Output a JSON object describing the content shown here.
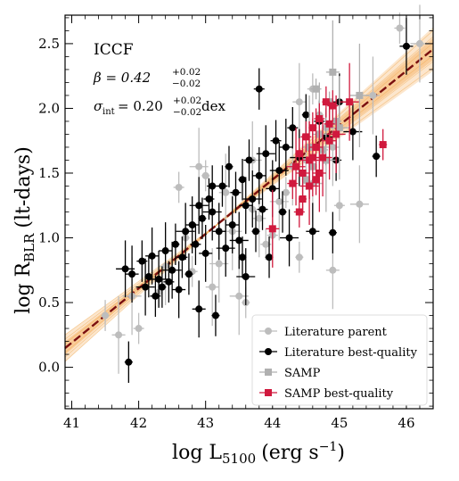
{
  "chart_data": {
    "type": "scatter",
    "xlabel": "log L",
    "xlabel_sub": "5100",
    "xlabel_unit": "(erg s",
    "xlabel_unit_sup": "−1",
    "xlabel_unit_close": ")",
    "ylabel": "log R",
    "ylabel_sub": "BLR",
    "ylabel_unit": "(lt-days)",
    "xlim": [
      40.9,
      46.4
    ],
    "ylim": [
      -0.32,
      2.72
    ],
    "xticks": [
      41,
      42,
      43,
      44,
      45,
      46
    ],
    "yticks": [
      0.0,
      0.5,
      1.0,
      1.5,
      2.0,
      2.5
    ],
    "ytick_labels": [
      "0.0",
      "0.5",
      "1.0",
      "1.5",
      "2.0",
      "2.5"
    ],
    "grid": false,
    "legend_position": "bottom-right",
    "annotations": {
      "method": "ICCF",
      "beta_text": "β = 0.42",
      "beta_err_up": "+0.02",
      "beta_err_down": "−0.02",
      "sigma_text": "σ",
      "sigma_sub": "int",
      "sigma_value": " = 0.20",
      "sigma_err_up": "+0.02",
      "sigma_err_down": "−0.02",
      "sigma_unit": "dex"
    },
    "fit": {
      "slope": 0.42,
      "intercept_at_44": 1.45,
      "line_color": "#7a0f0f",
      "band_color": "#f5b770"
    },
    "series": [
      {
        "name": "Literature parent",
        "color": "#bdbdbd",
        "marker": "circle",
        "points": [
          [
            42.6,
            1.39
          ],
          [
            42.9,
            1.55
          ],
          [
            43.0,
            1.48
          ],
          [
            42.4,
            0.78
          ],
          [
            42.8,
            0.74
          ],
          [
            43.5,
            0.55
          ],
          [
            43.6,
            0.5
          ],
          [
            43.1,
            0.62
          ],
          [
            43.3,
            0.92
          ],
          [
            43.4,
            1.05
          ],
          [
            43.7,
            1.22
          ],
          [
            43.8,
            1.15
          ],
          [
            44.0,
            1.02
          ],
          [
            44.1,
            1.28
          ],
          [
            44.2,
            1.35
          ],
          [
            44.3,
            1.55
          ],
          [
            44.5,
            1.6
          ],
          [
            44.6,
            1.42
          ],
          [
            44.8,
            1.85
          ],
          [
            44.9,
            1.7
          ],
          [
            45.0,
            1.25
          ],
          [
            45.3,
            1.26
          ],
          [
            44.7,
            1.95
          ],
          [
            45.5,
            2.1
          ],
          [
            45.9,
            2.62
          ],
          [
            46.2,
            2.5
          ],
          [
            44.4,
            0.85
          ],
          [
            44.9,
            0.75
          ],
          [
            43.9,
            0.95
          ],
          [
            43.2,
            0.8
          ],
          [
            41.5,
            0.4
          ],
          [
            41.7,
            0.25
          ],
          [
            42.0,
            0.3
          ],
          [
            41.9,
            0.55
          ],
          [
            42.3,
            0.58
          ],
          [
            44.4,
            2.05
          ],
          [
            44.6,
            2.15
          ],
          [
            43.7,
            1.6
          ],
          [
            42.7,
            1.0
          ],
          [
            43.3,
            1.35
          ]
        ]
      },
      {
        "name": "Literature best-quality",
        "color": "#000000",
        "marker": "circle",
        "points": [
          [
            41.8,
            0.76
          ],
          [
            41.85,
            0.04
          ],
          [
            41.9,
            0.72
          ],
          [
            42.05,
            0.82
          ],
          [
            42.1,
            0.62
          ],
          [
            42.15,
            0.7
          ],
          [
            42.2,
            0.86
          ],
          [
            42.25,
            0.55
          ],
          [
            42.3,
            0.68
          ],
          [
            42.35,
            0.62
          ],
          [
            42.4,
            0.9
          ],
          [
            42.45,
            0.66
          ],
          [
            42.5,
            0.75
          ],
          [
            42.55,
            0.95
          ],
          [
            42.6,
            0.6
          ],
          [
            42.65,
            0.85
          ],
          [
            42.7,
            1.05
          ],
          [
            42.75,
            0.72
          ],
          [
            42.8,
            1.1
          ],
          [
            42.85,
            0.95
          ],
          [
            42.9,
            1.25
          ],
          [
            42.95,
            1.15
          ],
          [
            43.0,
            0.88
          ],
          [
            43.05,
            1.3
          ],
          [
            43.1,
            1.2
          ],
          [
            43.15,
            0.4
          ],
          [
            43.2,
            1.05
          ],
          [
            43.25,
            1.4
          ],
          [
            43.3,
            0.92
          ],
          [
            43.35,
            1.55
          ],
          [
            43.4,
            1.1
          ],
          [
            43.45,
            1.35
          ],
          [
            43.5,
            0.98
          ],
          [
            43.55,
            1.45
          ],
          [
            43.6,
            1.25
          ],
          [
            43.65,
            1.6
          ],
          [
            43.7,
            1.3
          ],
          [
            43.75,
            1.05
          ],
          [
            43.8,
            1.48
          ],
          [
            43.85,
            1.22
          ],
          [
            43.9,
            1.65
          ],
          [
            43.95,
            0.85
          ],
          [
            44.0,
            1.38
          ],
          [
            44.05,
            1.75
          ],
          [
            44.1,
            1.52
          ],
          [
            44.15,
            1.2
          ],
          [
            44.2,
            1.7
          ],
          [
            44.3,
            1.85
          ],
          [
            44.4,
            1.62
          ],
          [
            44.5,
            1.95
          ],
          [
            44.6,
            1.05
          ],
          [
            44.7,
            1.9
          ],
          [
            44.8,
            1.78
          ],
          [
            44.9,
            1.04
          ],
          [
            45.0,
            2.05
          ],
          [
            44.95,
            1.6
          ],
          [
            45.2,
            1.82
          ],
          [
            45.55,
            1.63
          ],
          [
            46.0,
            2.48
          ],
          [
            43.8,
            2.15
          ],
          [
            44.25,
            1.0
          ],
          [
            43.55,
            0.85
          ],
          [
            42.9,
            0.45
          ],
          [
            43.1,
            1.4
          ],
          [
            43.6,
            0.7
          ]
        ]
      },
      {
        "name": "SAMP",
        "color": "#b0b0b0",
        "marker": "square",
        "points": [
          [
            44.6,
            1.55
          ],
          [
            44.7,
            1.8
          ],
          [
            44.75,
            1.68
          ],
          [
            44.8,
            1.6
          ],
          [
            44.85,
            2.05
          ],
          [
            44.9,
            2.28
          ],
          [
            44.95,
            1.9
          ],
          [
            45.0,
            1.85
          ],
          [
            44.5,
            1.45
          ],
          [
            44.55,
            1.7
          ],
          [
            44.65,
            2.15
          ],
          [
            45.3,
            2.1
          ]
        ]
      },
      {
        "name": "SAMP best-quality",
        "color": "#d0193d",
        "marker": "square",
        "points": [
          [
            44.0,
            1.07
          ],
          [
            44.3,
            1.42
          ],
          [
            44.35,
            1.55
          ],
          [
            44.4,
            1.65
          ],
          [
            44.45,
            1.5
          ],
          [
            44.5,
            1.78
          ],
          [
            44.55,
            1.6
          ],
          [
            44.6,
            1.85
          ],
          [
            44.65,
            1.7
          ],
          [
            44.7,
            1.92
          ],
          [
            44.75,
            1.62
          ],
          [
            44.8,
            2.05
          ],
          [
            44.85,
            1.75
          ],
          [
            44.9,
            2.02
          ],
          [
            44.55,
            1.4
          ],
          [
            44.45,
            1.3
          ],
          [
            44.7,
            1.5
          ],
          [
            44.85,
            1.88
          ],
          [
            45.15,
            2.05
          ],
          [
            45.65,
            1.72
          ],
          [
            44.6,
            1.62
          ],
          [
            44.4,
            1.2
          ],
          [
            44.95,
            1.8
          ],
          [
            44.65,
            1.45
          ]
        ]
      }
    ]
  }
}
